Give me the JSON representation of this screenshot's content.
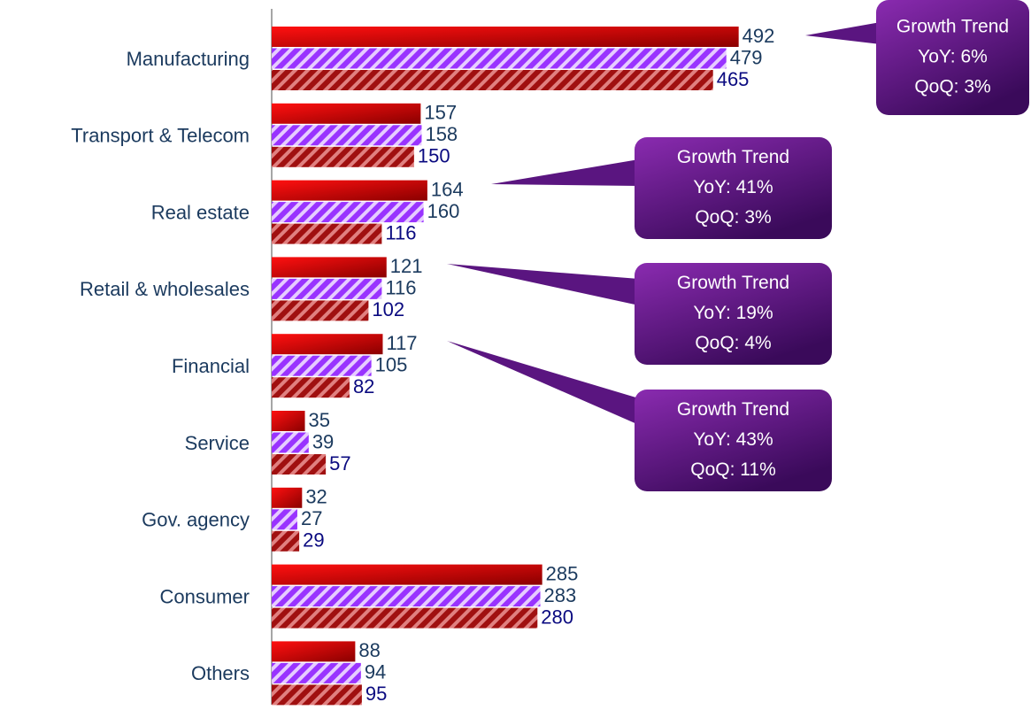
{
  "chart_data": {
    "type": "bar",
    "orientation": "horizontal",
    "categories": [
      "Manufacturing",
      "Transport & Telecom",
      "Real estate",
      "Retail & wholesales",
      "Financial",
      "Service",
      "Gov. agency",
      "Consumer",
      "Others"
    ],
    "series": [
      {
        "color": "#e00000",
        "values": [
          492,
          157,
          164,
          121,
          117,
          35,
          32,
          285,
          88
        ]
      },
      {
        "color": "#9933ff",
        "values": [
          479,
          158,
          160,
          116,
          105,
          39,
          27,
          283,
          94
        ]
      },
      {
        "color": "#a01010",
        "values": [
          465,
          150,
          116,
          102,
          82,
          57,
          29,
          280,
          95
        ]
      }
    ],
    "xlim": [
      0,
      800
    ],
    "annotations": [
      {
        "lines": [
          "Growth Trend",
          "YoY: 6%",
          "QoQ: 3%"
        ]
      },
      {
        "lines": [
          "Growth Trend",
          "YoY: 41%",
          "QoQ: 3%"
        ]
      },
      {
        "lines": [
          "Growth Trend",
          "YoY: 19%",
          "QoQ: 4%"
        ]
      },
      {
        "lines": [
          "Growth Trend",
          "YoY: 43%",
          "QoQ: 11%"
        ]
      }
    ]
  }
}
